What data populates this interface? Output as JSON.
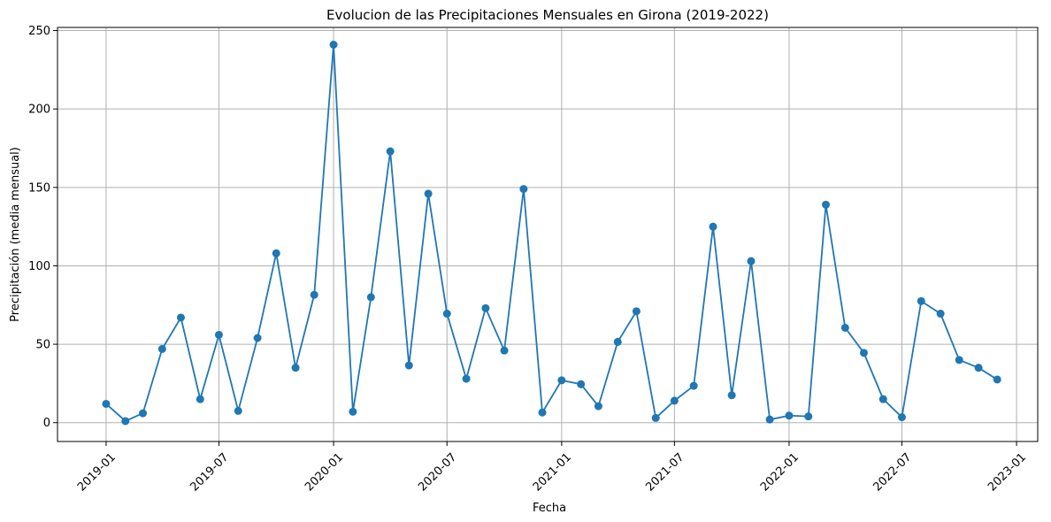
{
  "chart_data": {
    "type": "line",
    "title": "Evolucion de las Precipitaciones Mensuales en Girona (2019-2022)",
    "xlabel": "Fecha",
    "ylabel": "Precipitación (media mensual)",
    "xlim": [
      "2018-10-15",
      "2023-02-04"
    ],
    "ylim": [
      -12,
      252
    ],
    "grid": true,
    "color": "#1f77b4",
    "x_ticks": [
      "2019-01",
      "2019-07",
      "2020-01",
      "2020-07",
      "2021-01",
      "2021-07",
      "2022-01",
      "2022-07",
      "2023-01"
    ],
    "y_ticks": [
      0,
      50,
      100,
      150,
      200,
      250
    ],
    "series": [
      {
        "x": [
          "2019-01-01",
          "2019-02-01",
          "2019-03-01",
          "2019-04-01",
          "2019-05-01",
          "2019-06-01",
          "2019-07-01",
          "2019-08-01",
          "2019-09-01",
          "2019-10-01",
          "2019-11-01",
          "2019-12-01",
          "2020-01-01",
          "2020-02-01",
          "2020-03-01",
          "2020-04-01",
          "2020-05-01",
          "2020-06-01",
          "2020-07-01",
          "2020-08-01",
          "2020-09-01",
          "2020-10-01",
          "2020-11-01",
          "2020-12-01",
          "2021-01-01",
          "2021-02-01",
          "2021-03-01",
          "2021-04-01",
          "2021-05-01",
          "2021-06-01",
          "2021-07-01",
          "2021-08-01",
          "2021-09-01",
          "2021-10-01",
          "2021-11-01",
          "2021-12-01",
          "2022-01-01",
          "2022-02-01",
          "2022-03-01",
          "2022-04-01",
          "2022-05-01",
          "2022-06-01",
          "2022-07-01",
          "2022-08-01",
          "2022-09-01",
          "2022-10-01",
          "2022-11-01",
          "2022-12-01"
        ],
        "y": [
          12,
          1,
          6,
          47,
          67,
          15,
          56,
          7.5,
          54,
          108,
          35,
          81.5,
          241,
          7,
          80,
          173,
          36.5,
          146,
          69.5,
          28,
          73,
          46,
          149,
          6.5,
          27,
          24.5,
          10.5,
          51.5,
          71,
          3,
          14,
          23.5,
          125,
          17.5,
          103,
          2,
          4.5,
          4,
          139,
          60.5,
          44.5,
          15,
          3.5,
          77.5,
          69.5,
          40,
          35,
          27.5
        ]
      }
    ]
  }
}
